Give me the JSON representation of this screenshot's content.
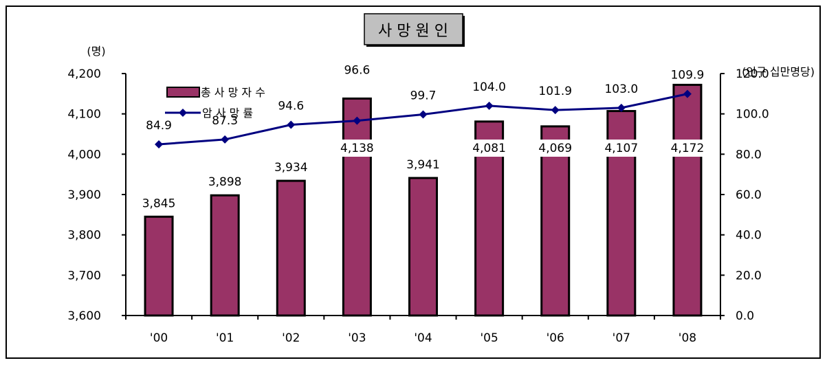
{
  "chart_data": {
    "type": "bar",
    "title": "사 망 원 인",
    "categories": [
      "'00",
      "'01",
      "'02",
      "'03",
      "'04",
      "'05",
      "'06",
      "'07",
      "'08"
    ],
    "series": [
      {
        "name": "총 사 망 자 수",
        "type": "bar",
        "axis": "left",
        "color": "#993366",
        "values": [
          3845,
          3898,
          3934,
          4138,
          3941,
          4081,
          4069,
          4107,
          4172
        ],
        "labels": [
          "3,845",
          "3,898",
          "3,934",
          "4,138",
          "3,941",
          "4,081",
          "4,069",
          "4,107",
          "4,172"
        ]
      },
      {
        "name": "암 사 망 률",
        "type": "line",
        "axis": "right",
        "color": "#000080",
        "marker": "diamond",
        "values": [
          84.9,
          87.3,
          94.6,
          96.6,
          99.7,
          104.0,
          101.9,
          103.0,
          109.9
        ],
        "labels": [
          "84.9",
          "87.3",
          "94.6",
          "96.6",
          "99.7",
          "104.0",
          "101.9",
          "103.0",
          "109.9"
        ]
      }
    ],
    "left_axis": {
      "unit": "(명)",
      "range": [
        3600,
        4200
      ],
      "ticks": [
        "3,600",
        "3,700",
        "3,800",
        "3,900",
        "4,000",
        "4,100",
        "4,200"
      ],
      "tick_values": [
        3600,
        3700,
        3800,
        3900,
        4000,
        4100,
        4200
      ]
    },
    "right_axis": {
      "unit": "(인구 십만명당)",
      "range": [
        0,
        120
      ],
      "ticks": [
        "0.0",
        "20.0",
        "40.0",
        "60.0",
        "80.0",
        "100.0",
        "120.0"
      ],
      "tick_values": [
        0,
        20,
        40,
        60,
        80,
        100,
        120
      ]
    },
    "grid": false,
    "legend_position": "top-left"
  }
}
